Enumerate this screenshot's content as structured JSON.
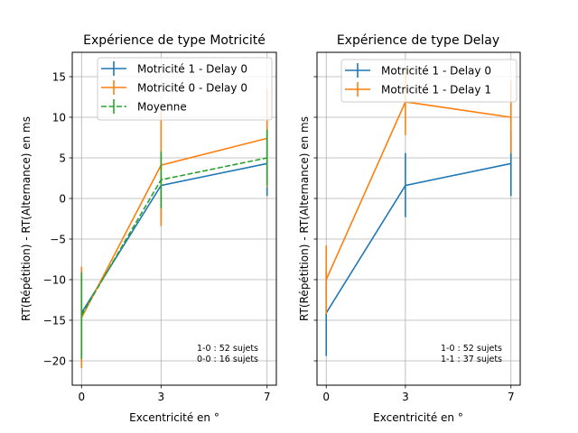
{
  "chart_data": [
    {
      "type": "line",
      "title": "Expérience de type Motricité",
      "xlabel": "Excentricité en °",
      "ylabel": "RT(Répétition) - RT(Alternance) en ms",
      "x": [
        0,
        3,
        7
      ],
      "xlim": [
        -0.35,
        7.35
      ],
      "ylim": [
        -23,
        18
      ],
      "xticks": [
        0,
        3,
        7
      ],
      "yticks": [
        -20,
        -15,
        -10,
        -5,
        0,
        5,
        10,
        15
      ],
      "grid": true,
      "legend_position": "top-right",
      "annotations": [
        "1-0 : 52 sujets",
        "0-0 : 16 sujets"
      ],
      "series": [
        {
          "name": "Motricité 1 - Delay 0",
          "color": "#1f77b4",
          "style": "solid",
          "values": [
            -14.1,
            1.6,
            4.3
          ],
          "err_low": [
            -19.4,
            -2.3,
            0.3
          ],
          "err_high": [
            -8.9,
            5.6,
            8.4
          ]
        },
        {
          "name": "Motricité 0 - Delay 0",
          "color": "#ff7f0e",
          "style": "solid",
          "values": [
            -14.7,
            4.1,
            7.4
          ],
          "err_low": [
            -20.9,
            -3.4,
            1.4
          ],
          "err_high": [
            -8.4,
            11.5,
            13.5
          ]
        },
        {
          "name": "Moyenne",
          "color": "#2ca02c",
          "style": "dashed",
          "values": [
            -14.4,
            2.3,
            5.0
          ],
          "err_low": [
            -19.8,
            -1.2,
            1.6
          ],
          "err_high": [
            -9.1,
            5.8,
            8.5
          ]
        }
      ]
    },
    {
      "type": "line",
      "title": "Expérience de type Delay",
      "xlabel": "Excentricité en °",
      "ylabel": "RT(Répétition) - RT(Alternance) en ms",
      "x": [
        0,
        3,
        7
      ],
      "xlim": [
        -0.35,
        7.35
      ],
      "ylim": [
        -23,
        18
      ],
      "xticks": [
        0,
        3,
        7
      ],
      "yticks": [
        -20,
        -15,
        -10,
        -5,
        0,
        5,
        10,
        15
      ],
      "grid": true,
      "legend_position": "top-right",
      "annotations": [
        "1-0 : 52 sujets",
        "1-1 : 37 sujets"
      ],
      "series": [
        {
          "name": "Motricité 1 - Delay 0",
          "color": "#1f77b4",
          "style": "solid",
          "values": [
            -14.1,
            1.6,
            4.3
          ],
          "err_low": [
            -19.4,
            -2.3,
            0.3
          ],
          "err_high": [
            -8.9,
            5.6,
            8.4
          ]
        },
        {
          "name": "Motricité 1 - Delay 1",
          "color": "#ff7f0e",
          "style": "solid",
          "values": [
            -10.0,
            11.9,
            10.0
          ],
          "err_low": [
            -14.2,
            7.8,
            5.6
          ],
          "err_high": [
            -5.8,
            16.0,
            14.5
          ]
        }
      ]
    }
  ]
}
